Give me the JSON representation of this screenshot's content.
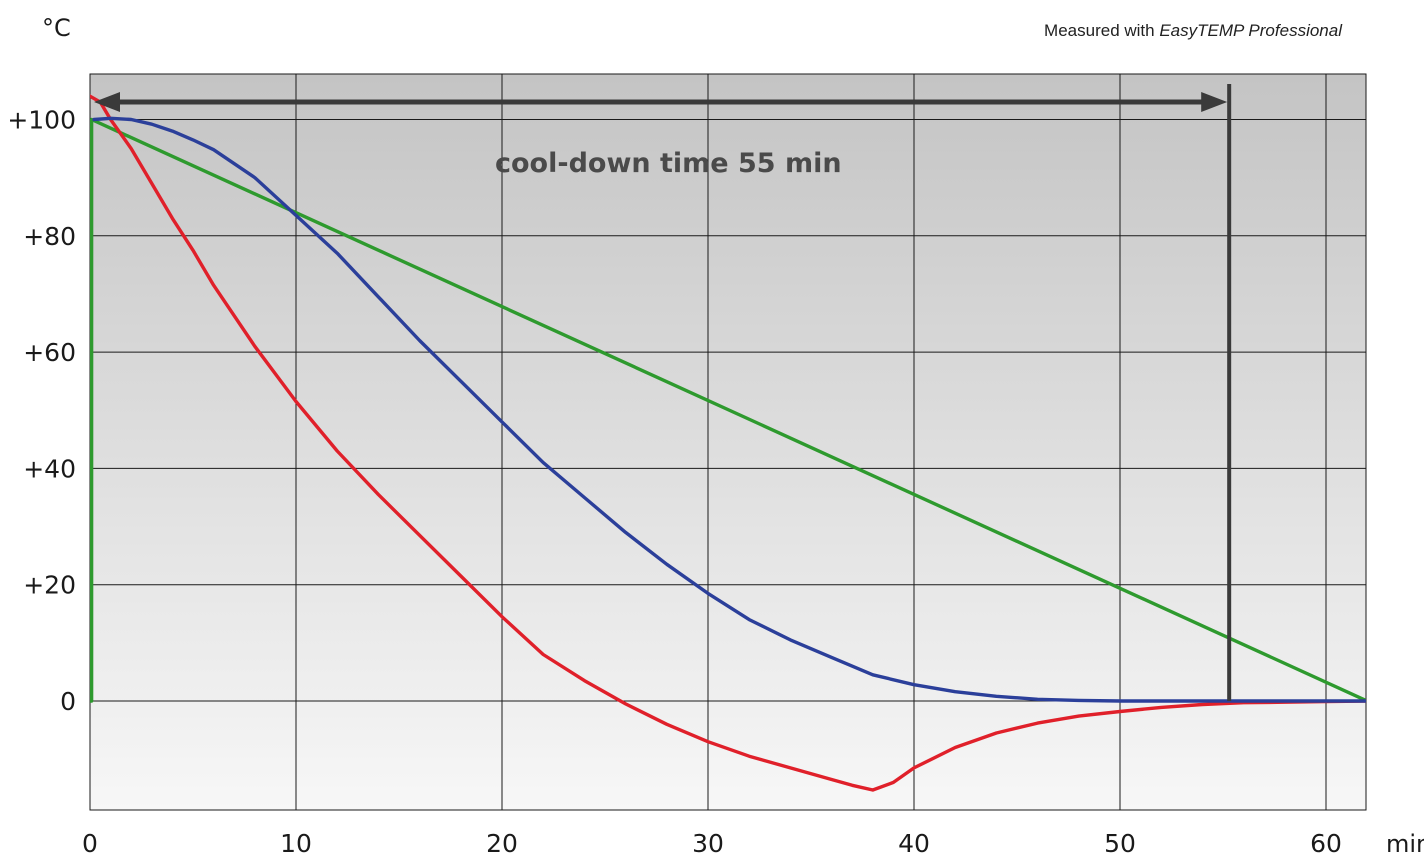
{
  "chart_data": {
    "type": "line",
    "ylabel": "°C",
    "xlabel": "min",
    "source_prefix": "Measured with ",
    "source_product": "EasyTEMP Professional",
    "annotation": "cool-down time 55 min",
    "xlim": [
      0,
      62
    ],
    "ylim": [
      -19,
      108
    ],
    "x_ticks": [
      0,
      10,
      20,
      30,
      40,
      50,
      60
    ],
    "x_tick_labels": [
      "0",
      "10",
      "20",
      "30",
      "40",
      "50",
      "60"
    ],
    "y_ticks": [
      0,
      20,
      40,
      60,
      80,
      100
    ],
    "y_tick_labels": [
      "0",
      "+20",
      "+40",
      "+60",
      "+80",
      "+100"
    ],
    "grid": true,
    "cooldown_marker_x": 55.3,
    "colors": {
      "blue_series": "#2b3f9a",
      "red_series": "#e0202a",
      "green_series": "#2e9a2e",
      "grid": "#1a1a1a",
      "arrow": "#3a3a3a",
      "background_top": "#c4c4c4",
      "background_bottom": "#f7f7f7"
    },
    "series": [
      {
        "color": "#2b3f9a",
        "x": [
          0.2,
          1,
          2,
          3,
          4,
          5,
          6,
          8,
          10,
          12,
          14,
          16,
          18,
          20,
          22,
          24,
          26,
          28,
          30,
          32,
          34,
          36,
          38,
          40,
          42,
          44,
          46,
          48,
          50,
          52,
          55,
          58,
          62
        ],
        "y": [
          100,
          100.2,
          100,
          99.2,
          98,
          96.5,
          94.8,
          90,
          83.5,
          77,
          69.5,
          62,
          55,
          48,
          41,
          35,
          29,
          23.5,
          18.5,
          14,
          10.5,
          7.5,
          4.5,
          2.8,
          1.6,
          0.8,
          0.3,
          0.1,
          0,
          0,
          0,
          0,
          0
        ]
      },
      {
        "color": "#e0202a",
        "x": [
          0,
          0.5,
          1,
          2,
          3,
          4,
          5,
          6,
          8,
          10,
          12,
          14,
          16,
          18,
          20,
          22,
          24,
          26,
          28,
          30,
          32,
          34,
          36,
          37,
          38,
          39,
          40,
          42,
          44,
          46,
          48,
          50,
          52,
          54,
          56,
          58,
          60,
          62
        ],
        "y": [
          104,
          103,
          100,
          95,
          89,
          83,
          77.5,
          71.5,
          61,
          51.5,
          43,
          35.5,
          28.5,
          21.5,
          14.5,
          8,
          3.5,
          -0.5,
          -4,
          -7,
          -9.5,
          -11.5,
          -13.5,
          -14.5,
          -15.3,
          -14,
          -11.5,
          -8,
          -5.5,
          -3.8,
          -2.6,
          -1.8,
          -1.1,
          -0.6,
          -0.3,
          -0.2,
          -0.1,
          0
        ]
      },
      {
        "color": "#2e9a2e",
        "x": [
          0,
          0.08,
          0.08,
          62
        ],
        "y": [
          0,
          0,
          100,
          0
        ]
      }
    ]
  }
}
